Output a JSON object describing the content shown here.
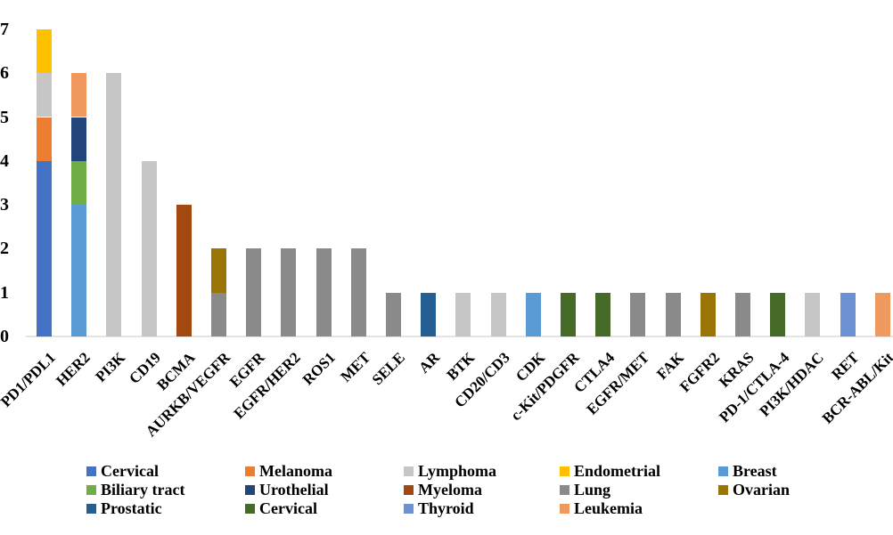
{
  "chart_data": {
    "type": "bar",
    "stacked": true,
    "title": "",
    "xlabel": "",
    "ylabel": "",
    "ylim": [
      0,
      7
    ],
    "yticks": [
      "0",
      "1",
      "2",
      "3",
      "4",
      "5",
      "6",
      "7"
    ],
    "grid": false,
    "legend_position": "bottom",
    "legend": [
      {
        "key": "cervical",
        "label": "Cervical",
        "color": "#4472C4"
      },
      {
        "key": "melanoma",
        "label": "Melanoma",
        "color": "#ED7D31"
      },
      {
        "key": "lymphoma",
        "label": "Lymphoma",
        "color": "#C6C6C6"
      },
      {
        "key": "endometrial",
        "label": "Endometrial",
        "color": "#FFC000"
      },
      {
        "key": "breast",
        "label": "Breast",
        "color": "#5B9BD5"
      },
      {
        "key": "biliary_tract",
        "label": "Biliary tract",
        "color": "#70AD47"
      },
      {
        "key": "urothelial",
        "label": "Urothelial",
        "color": "#24457C"
      },
      {
        "key": "myeloma",
        "label": "Myeloma",
        "color": "#A3480F"
      },
      {
        "key": "lung",
        "label": "Lung",
        "color": "#8A8A8A"
      },
      {
        "key": "ovarian",
        "label": "Ovarian",
        "color": "#9A7404"
      },
      {
        "key": "prostatic",
        "label": "Prostatic",
        "color": "#255E91"
      },
      {
        "key": "cervical_green",
        "label": "Cervical",
        "color": "#466B28"
      },
      {
        "key": "thyroid",
        "label": "Thyroid",
        "color": "#6D92D4"
      },
      {
        "key": "leukemia",
        "label": "Leukemia",
        "color": "#F0995E"
      }
    ],
    "categories": [
      "PD1/PDL1",
      "HER2",
      "PI3K",
      "CD19",
      "BCMA",
      "AURKB/VEGFR",
      "EGFR",
      "EGFR/HER2",
      "ROS1",
      "MET",
      "SELE",
      "AR",
      "BTK",
      "CD20/CD3",
      "CDK",
      "c-Kit/PDGFR",
      "CTLA4",
      "EGFR/MET",
      "FAK",
      "FGFR2",
      "KRAS",
      "PD-1/CTLA-4",
      "PI3K/HDAC",
      "RET",
      "BCR-ABL/Kit"
    ],
    "bars": [
      {
        "label": "PD1/PDL1",
        "segments": [
          {
            "series": "cervical",
            "value": 4
          },
          {
            "series": "melanoma",
            "value": 1
          },
          {
            "series": "lymphoma",
            "value": 1
          },
          {
            "series": "endometrial",
            "value": 1
          }
        ]
      },
      {
        "label": "HER2",
        "segments": [
          {
            "series": "breast",
            "value": 3
          },
          {
            "series": "biliary_tract",
            "value": 1
          },
          {
            "series": "urothelial",
            "value": 1
          },
          {
            "series": "leukemia",
            "value": 1
          }
        ]
      },
      {
        "label": "PI3K",
        "segments": [
          {
            "series": "lymphoma",
            "value": 6
          }
        ]
      },
      {
        "label": "CD19",
        "segments": [
          {
            "series": "lymphoma",
            "value": 4
          }
        ]
      },
      {
        "label": "BCMA",
        "segments": [
          {
            "series": "myeloma",
            "value": 3
          }
        ]
      },
      {
        "label": "AURKB/VEGFR",
        "segments": [
          {
            "series": "lung",
            "value": 1
          },
          {
            "series": "ovarian",
            "value": 1
          }
        ]
      },
      {
        "label": "EGFR",
        "segments": [
          {
            "series": "lung",
            "value": 2
          }
        ]
      },
      {
        "label": "EGFR/HER2",
        "segments": [
          {
            "series": "lung",
            "value": 2
          }
        ]
      },
      {
        "label": "ROS1",
        "segments": [
          {
            "series": "lung",
            "value": 2
          }
        ]
      },
      {
        "label": "MET",
        "segments": [
          {
            "series": "lung",
            "value": 2
          }
        ]
      },
      {
        "label": "SELE",
        "segments": [
          {
            "series": "lung",
            "value": 1
          }
        ]
      },
      {
        "label": "AR",
        "segments": [
          {
            "series": "prostatic",
            "value": 1
          }
        ]
      },
      {
        "label": "BTK",
        "segments": [
          {
            "series": "lymphoma",
            "value": 1
          }
        ]
      },
      {
        "label": "CD20/CD3",
        "segments": [
          {
            "series": "lymphoma",
            "value": 1
          }
        ]
      },
      {
        "label": "CDK",
        "segments": [
          {
            "series": "breast",
            "value": 1
          }
        ]
      },
      {
        "label": "c-Kit/PDGFR",
        "segments": [
          {
            "series": "cervical_green",
            "value": 1
          }
        ]
      },
      {
        "label": "CTLA4",
        "segments": [
          {
            "series": "cervical_green",
            "value": 1
          }
        ]
      },
      {
        "label": "EGFR/MET",
        "segments": [
          {
            "series": "lung",
            "value": 1
          }
        ]
      },
      {
        "label": "FAK",
        "segments": [
          {
            "series": "lung",
            "value": 1
          }
        ]
      },
      {
        "label": "FGFR2",
        "segments": [
          {
            "series": "ovarian",
            "value": 1
          }
        ]
      },
      {
        "label": "KRAS",
        "segments": [
          {
            "series": "lung",
            "value": 1
          }
        ]
      },
      {
        "label": "PD-1/CTLA-4",
        "segments": [
          {
            "series": "cervical_green",
            "value": 1
          }
        ]
      },
      {
        "label": "PI3K/HDAC",
        "segments": [
          {
            "series": "lymphoma",
            "value": 1
          }
        ]
      },
      {
        "label": "RET",
        "segments": [
          {
            "series": "thyroid",
            "value": 1
          }
        ]
      },
      {
        "label": "BCR-ABL/Kit",
        "segments": [
          {
            "series": "leukemia",
            "value": 1
          }
        ]
      }
    ]
  }
}
